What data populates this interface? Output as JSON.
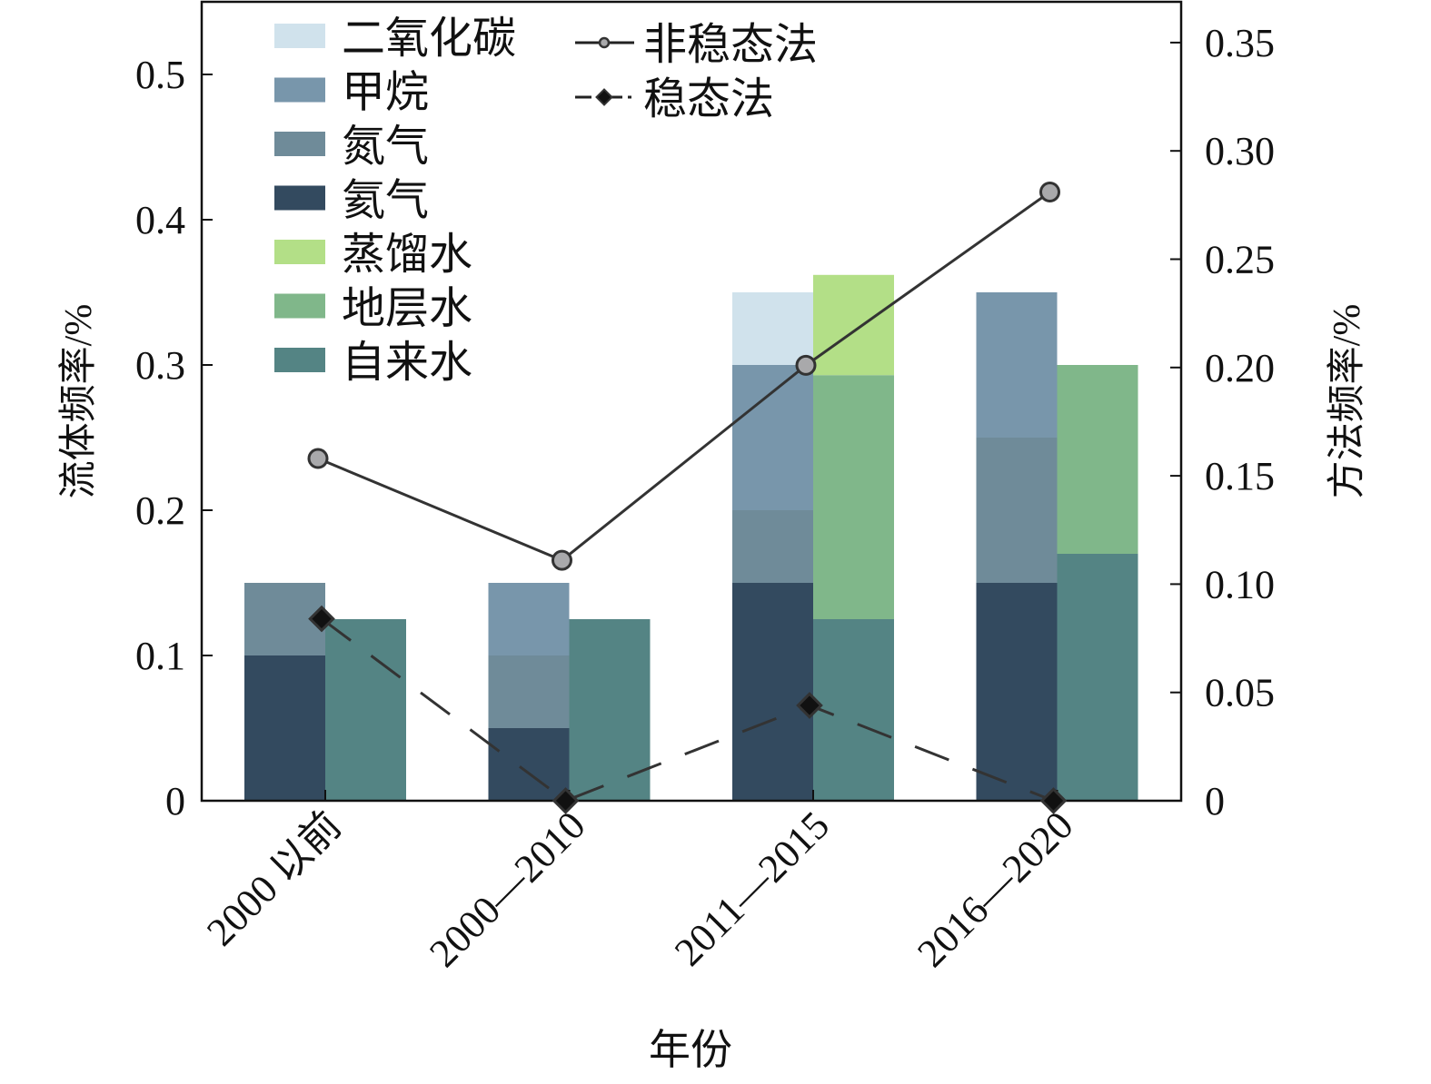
{
  "chart_data": {
    "type": "bar",
    "xlabel": "年份",
    "ylabel": "流体频率/%",
    "y2label": "方法频率/%",
    "ylim": [
      0,
      0.55
    ],
    "y2lim": [
      0,
      0.37
    ],
    "yticks": [
      "0",
      "0.1",
      "0.2",
      "0.3",
      "0.4",
      "0.5"
    ],
    "y2ticks": [
      "0",
      "0.05",
      "0.10",
      "0.15",
      "0.20",
      "0.25",
      "0.30",
      "0.35"
    ],
    "categories": [
      "2000 以前",
      "2000—2010",
      "2011—2015",
      "2016—2020"
    ],
    "grid": false,
    "legend_placement": "top-left",
    "gas_stack": [
      {
        "name": "氦气",
        "color": "#334a5f",
        "values": [
          0.1,
          0.05,
          0.15,
          0.15
        ]
      },
      {
        "name": "氮气",
        "color": "#6f8b99",
        "values": [
          0.05,
          0.05,
          0.05,
          0.1
        ]
      },
      {
        "name": "甲烷",
        "color": "#7896ab",
        "values": [
          0,
          0.05,
          0.1,
          0.1
        ]
      },
      {
        "name": "二氧化碳",
        "color": "#d0e2ec",
        "values": [
          0,
          0,
          0.05,
          0
        ]
      }
    ],
    "liquid_stack": [
      {
        "name": "自来水",
        "color": "#548484",
        "values": [
          0.125,
          0.125,
          0.125,
          0.17
        ]
      },
      {
        "name": "地层水",
        "color": "#80b78a",
        "values": [
          0,
          0,
          0.168,
          0.13
        ]
      },
      {
        "name": "蒸馏水",
        "color": "#b3df87",
        "values": [
          0,
          0,
          0.069,
          0
        ]
      }
    ],
    "lines": [
      {
        "name": "非稳态法",
        "axis": "right",
        "style": "solid",
        "marker": "circle",
        "values": [
          0.158,
          0.111,
          0.201,
          0.281
        ]
      },
      {
        "name": "稳态法",
        "axis": "right",
        "style": "dashed",
        "marker": "diamond",
        "values": [
          0.084,
          0,
          0.044,
          0
        ]
      }
    ],
    "legend_bars": [
      "二氧化碳",
      "甲烷",
      "氮气",
      "氦气",
      "蒸馏水",
      "地层水",
      "自来水"
    ],
    "legend_lines": [
      "非稳态法",
      "稳态法"
    ]
  }
}
